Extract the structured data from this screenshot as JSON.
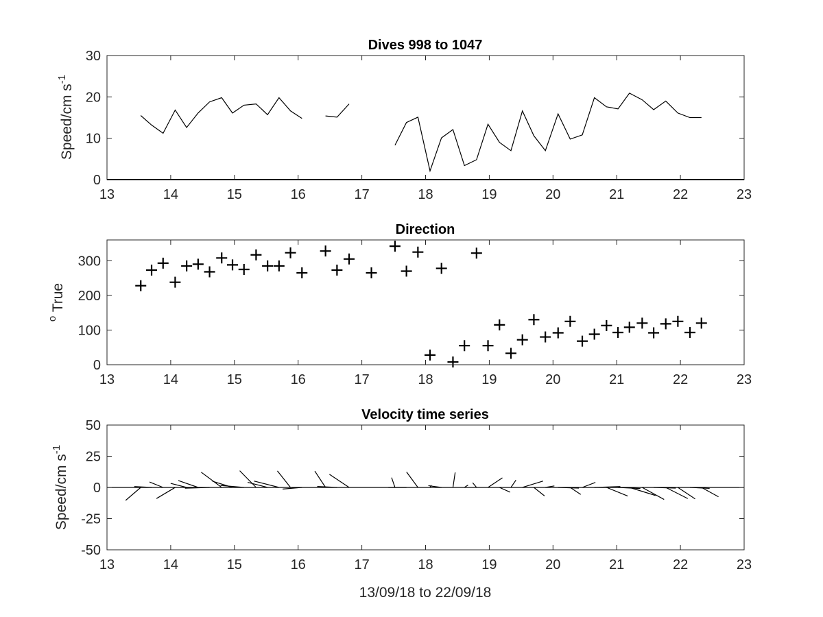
{
  "chart_data": [
    {
      "type": "line",
      "title": "Dives 998 to 1047",
      "ylabel": "Speed/cm s",
      "ylabel_sup": "-1",
      "xlim": [
        13,
        23
      ],
      "ylim": [
        0,
        30
      ],
      "xticks": [
        "13",
        "14",
        "15",
        "16",
        "17",
        "18",
        "19",
        "20",
        "21",
        "22",
        "23"
      ],
      "yticks": [
        "0",
        "10",
        "20",
        "30"
      ],
      "series": [
        {
          "segments": [
            [
              [
                13.53,
                15.5
              ],
              [
                13.7,
                13.2
              ],
              [
                13.88,
                11.2
              ],
              [
                14.07,
                16.8
              ],
              [
                14.25,
                12.6
              ],
              [
                14.43,
                16.1
              ],
              [
                14.61,
                18.8
              ],
              [
                14.8,
                19.8
              ],
              [
                14.97,
                16.1
              ],
              [
                15.15,
                18.0
              ],
              [
                15.34,
                18.3
              ],
              [
                15.52,
                15.7
              ],
              [
                15.7,
                19.8
              ],
              [
                15.88,
                16.6
              ],
              [
                16.06,
                14.8
              ]
            ],
            [
              [
                16.43,
                15.4
              ],
              [
                16.61,
                15.1
              ],
              [
                16.8,
                18.3
              ]
            ],
            [
              [
                17.52,
                8.3
              ],
              [
                17.7,
                13.8
              ],
              [
                17.88,
                15.1
              ],
              [
                18.07,
                2.1
              ],
              [
                18.25,
                10.1
              ],
              [
                18.43,
                12.1
              ],
              [
                18.61,
                3.4
              ],
              [
                18.8,
                4.8
              ],
              [
                18.98,
                13.4
              ],
              [
                19.16,
                9.0
              ],
              [
                19.34,
                7.0
              ],
              [
                19.52,
                16.6
              ],
              [
                19.7,
                10.6
              ],
              [
                19.88,
                7.0
              ],
              [
                20.08,
                15.9
              ],
              [
                20.27,
                9.8
              ],
              [
                20.46,
                10.8
              ],
              [
                20.65,
                19.8
              ],
              [
                20.84,
                17.6
              ],
              [
                21.02,
                17.1
              ],
              [
                21.2,
                20.9
              ],
              [
                21.4,
                19.3
              ],
              [
                21.58,
                16.9
              ],
              [
                21.77,
                19.0
              ],
              [
                21.96,
                16.1
              ],
              [
                22.15,
                15.0
              ],
              [
                22.33,
                15.0
              ]
            ]
          ]
        }
      ]
    },
    {
      "type": "scatter",
      "title": "Direction",
      "ylabel_sup": "o",
      "ylabel": " True",
      "xlim": [
        13,
        23
      ],
      "ylim": [
        0,
        360
      ],
      "xticks": [
        "13",
        "14",
        "15",
        "16",
        "17",
        "18",
        "19",
        "20",
        "21",
        "22",
        "23"
      ],
      "yticks": [
        "0",
        "100",
        "200",
        "300"
      ],
      "marker": "+",
      "points": [
        [
          13.53,
          228
        ],
        [
          13.7,
          273
        ],
        [
          13.88,
          293
        ],
        [
          14.07,
          238
        ],
        [
          14.25,
          285
        ],
        [
          14.43,
          290
        ],
        [
          14.61,
          268
        ],
        [
          14.8,
          308
        ],
        [
          14.97,
          288
        ],
        [
          15.15,
          275
        ],
        [
          15.34,
          317
        ],
        [
          15.52,
          285
        ],
        [
          15.7,
          285
        ],
        [
          15.88,
          323
        ],
        [
          16.06,
          265
        ],
        [
          16.43,
          328
        ],
        [
          16.61,
          273
        ],
        [
          16.8,
          305
        ],
        [
          17.15,
          265
        ],
        [
          17.52,
          342
        ],
        [
          17.7,
          270
        ],
        [
          17.88,
          325
        ],
        [
          18.07,
          28
        ],
        [
          18.25,
          278
        ],
        [
          18.43,
          8
        ],
        [
          18.61,
          55
        ],
        [
          18.8,
          322
        ],
        [
          18.98,
          55
        ],
        [
          19.16,
          115
        ],
        [
          19.34,
          33
        ],
        [
          19.52,
          72
        ],
        [
          19.7,
          130
        ],
        [
          19.88,
          80
        ],
        [
          20.08,
          92
        ],
        [
          20.27,
          125
        ],
        [
          20.46,
          68
        ],
        [
          20.65,
          88
        ],
        [
          20.84,
          113
        ],
        [
          21.02,
          93
        ],
        [
          21.2,
          108
        ],
        [
          21.4,
          120
        ],
        [
          21.58,
          92
        ],
        [
          21.77,
          118
        ],
        [
          21.96,
          125
        ],
        [
          22.15,
          93
        ],
        [
          22.33,
          120
        ]
      ]
    },
    {
      "type": "vector",
      "title": "Velocity time series",
      "ylabel": "Speed/cm s",
      "ylabel_sup": "-1",
      "xlabel": "13/09/18 to 22/09/18",
      "xlim": [
        13,
        23
      ],
      "ylim": [
        -50,
        50
      ],
      "xticks": [
        "13",
        "14",
        "15",
        "16",
        "17",
        "18",
        "19",
        "20",
        "21",
        "22",
        "23"
      ],
      "yticks": [
        "-50",
        "-25",
        "0",
        "25",
        "50"
      ],
      "vectors": [
        {
          "t": 13.53,
          "speed": 15.5,
          "dir": 228
        },
        {
          "t": 13.7,
          "speed": 13.2,
          "dir": 273
        },
        {
          "t": 13.88,
          "speed": 11.2,
          "dir": 293
        },
        {
          "t": 14.07,
          "speed": 16.8,
          "dir": 238
        },
        {
          "t": 14.25,
          "speed": 12.6,
          "dir": 285
        },
        {
          "t": 14.43,
          "speed": 16.1,
          "dir": 290
        },
        {
          "t": 14.61,
          "speed": 18.8,
          "dir": 268
        },
        {
          "t": 14.8,
          "speed": 19.8,
          "dir": 308
        },
        {
          "t": 14.97,
          "speed": 16.1,
          "dir": 288
        },
        {
          "t": 15.15,
          "speed": 18.0,
          "dir": 275
        },
        {
          "t": 15.34,
          "speed": 18.3,
          "dir": 317
        },
        {
          "t": 15.52,
          "speed": 15.7,
          "dir": 285
        },
        {
          "t": 15.7,
          "speed": 19.8,
          "dir": 285
        },
        {
          "t": 15.88,
          "speed": 16.6,
          "dir": 323
        },
        {
          "t": 16.06,
          "speed": 14.8,
          "dir": 265
        },
        {
          "t": 16.43,
          "speed": 15.4,
          "dir": 328
        },
        {
          "t": 16.61,
          "speed": 15.1,
          "dir": 273
        },
        {
          "t": 16.8,
          "speed": 18.3,
          "dir": 305
        },
        {
          "t": 17.52,
          "speed": 8.3,
          "dir": 342
        },
        {
          "t": 17.7,
          "speed": 13.8,
          "dir": 270
        },
        {
          "t": 17.88,
          "speed": 15.1,
          "dir": 325
        },
        {
          "t": 18.07,
          "speed": 2.1,
          "dir": 28
        },
        {
          "t": 18.25,
          "speed": 10.1,
          "dir": 278
        },
        {
          "t": 18.43,
          "speed": 12.1,
          "dir": 8
        },
        {
          "t": 18.61,
          "speed": 3.4,
          "dir": 55
        },
        {
          "t": 18.8,
          "speed": 4.8,
          "dir": 322
        },
        {
          "t": 18.98,
          "speed": 13.4,
          "dir": 55
        },
        {
          "t": 19.16,
          "speed": 9.0,
          "dir": 115
        },
        {
          "t": 19.34,
          "speed": 7.0,
          "dir": 33
        },
        {
          "t": 19.52,
          "speed": 16.6,
          "dir": 72
        },
        {
          "t": 19.7,
          "speed": 10.6,
          "dir": 130
        },
        {
          "t": 19.88,
          "speed": 7.0,
          "dir": 80
        },
        {
          "t": 20.08,
          "speed": 15.9,
          "dir": 92
        },
        {
          "t": 20.27,
          "speed": 9.8,
          "dir": 125
        },
        {
          "t": 20.46,
          "speed": 10.8,
          "dir": 68
        },
        {
          "t": 20.65,
          "speed": 19.8,
          "dir": 88
        },
        {
          "t": 20.84,
          "speed": 17.6,
          "dir": 113
        },
        {
          "t": 21.02,
          "speed": 17.1,
          "dir": 93
        },
        {
          "t": 21.2,
          "speed": 20.9,
          "dir": 108
        },
        {
          "t": 21.4,
          "speed": 19.3,
          "dir": 120
        },
        {
          "t": 21.58,
          "speed": 16.9,
          "dir": 92
        },
        {
          "t": 21.77,
          "speed": 19.0,
          "dir": 118
        },
        {
          "t": 21.96,
          "speed": 16.1,
          "dir": 125
        },
        {
          "t": 22.15,
          "speed": 15.0,
          "dir": 93
        },
        {
          "t": 22.33,
          "speed": 15.0,
          "dir": 120
        }
      ]
    }
  ]
}
